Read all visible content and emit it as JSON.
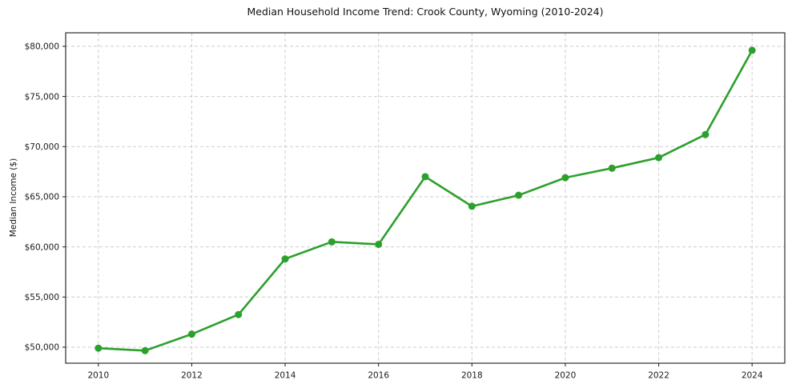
{
  "chart_data": {
    "type": "line",
    "title": "Median Household Income Trend: Crook County, Wyoming (2010-2024)",
    "xlabel": "",
    "ylabel": "Median Income ($)",
    "x": [
      2010,
      2011,
      2012,
      2013,
      2014,
      2015,
      2016,
      2017,
      2018,
      2019,
      2020,
      2021,
      2022,
      2023,
      2024
    ],
    "values": [
      49900,
      49650,
      51300,
      53250,
      58800,
      60500,
      60250,
      67000,
      64050,
      65150,
      66900,
      67850,
      68900,
      71200,
      79600
    ],
    "xlim": [
      2009.3,
      2024.7
    ],
    "ylim": [
      48400,
      81350
    ],
    "xticks": [
      2010,
      2012,
      2014,
      2016,
      2018,
      2020,
      2022,
      2024
    ],
    "xtick_labels": [
      "2010",
      "2012",
      "2014",
      "2016",
      "2018",
      "2020",
      "2022",
      "2024"
    ],
    "yticks": [
      50000,
      55000,
      60000,
      65000,
      70000,
      75000,
      80000
    ],
    "ytick_labels": [
      "$50,000",
      "$55,000",
      "$60,000",
      "$65,000",
      "$70,000",
      "$75,000",
      "$80,000"
    ],
    "grid": true,
    "legend": false,
    "colors": {
      "line": "#2ca02c",
      "marker": "#2ca02c",
      "grid": "#cdcdcd",
      "axis": "#1a1a1a",
      "text": "#1a1a1a",
      "background": "#ffffff"
    },
    "marker": "circle",
    "marker_size": 4.5,
    "line_width": 2.6
  }
}
